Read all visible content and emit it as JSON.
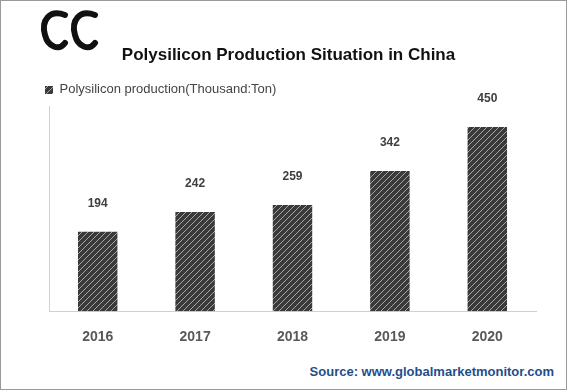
{
  "chart_data": {
    "type": "bar",
    "title": "Polysilicon Production Situation in China",
    "categories": [
      "2016",
      "2017",
      "2018",
      "2019",
      "2020"
    ],
    "series": [
      {
        "name": "Polysilicon production(Thousand:Ton)",
        "color": "#3a3a3a",
        "values": [
          194,
          242,
          259,
          342,
          450
        ]
      }
    ],
    "ylim": [
      0,
      500
    ],
    "tick_labels": "x",
    "grid": false,
    "legend": "top-left",
    "data_labels": true,
    "source": "Source: www.globalmarketmonitor.com"
  }
}
